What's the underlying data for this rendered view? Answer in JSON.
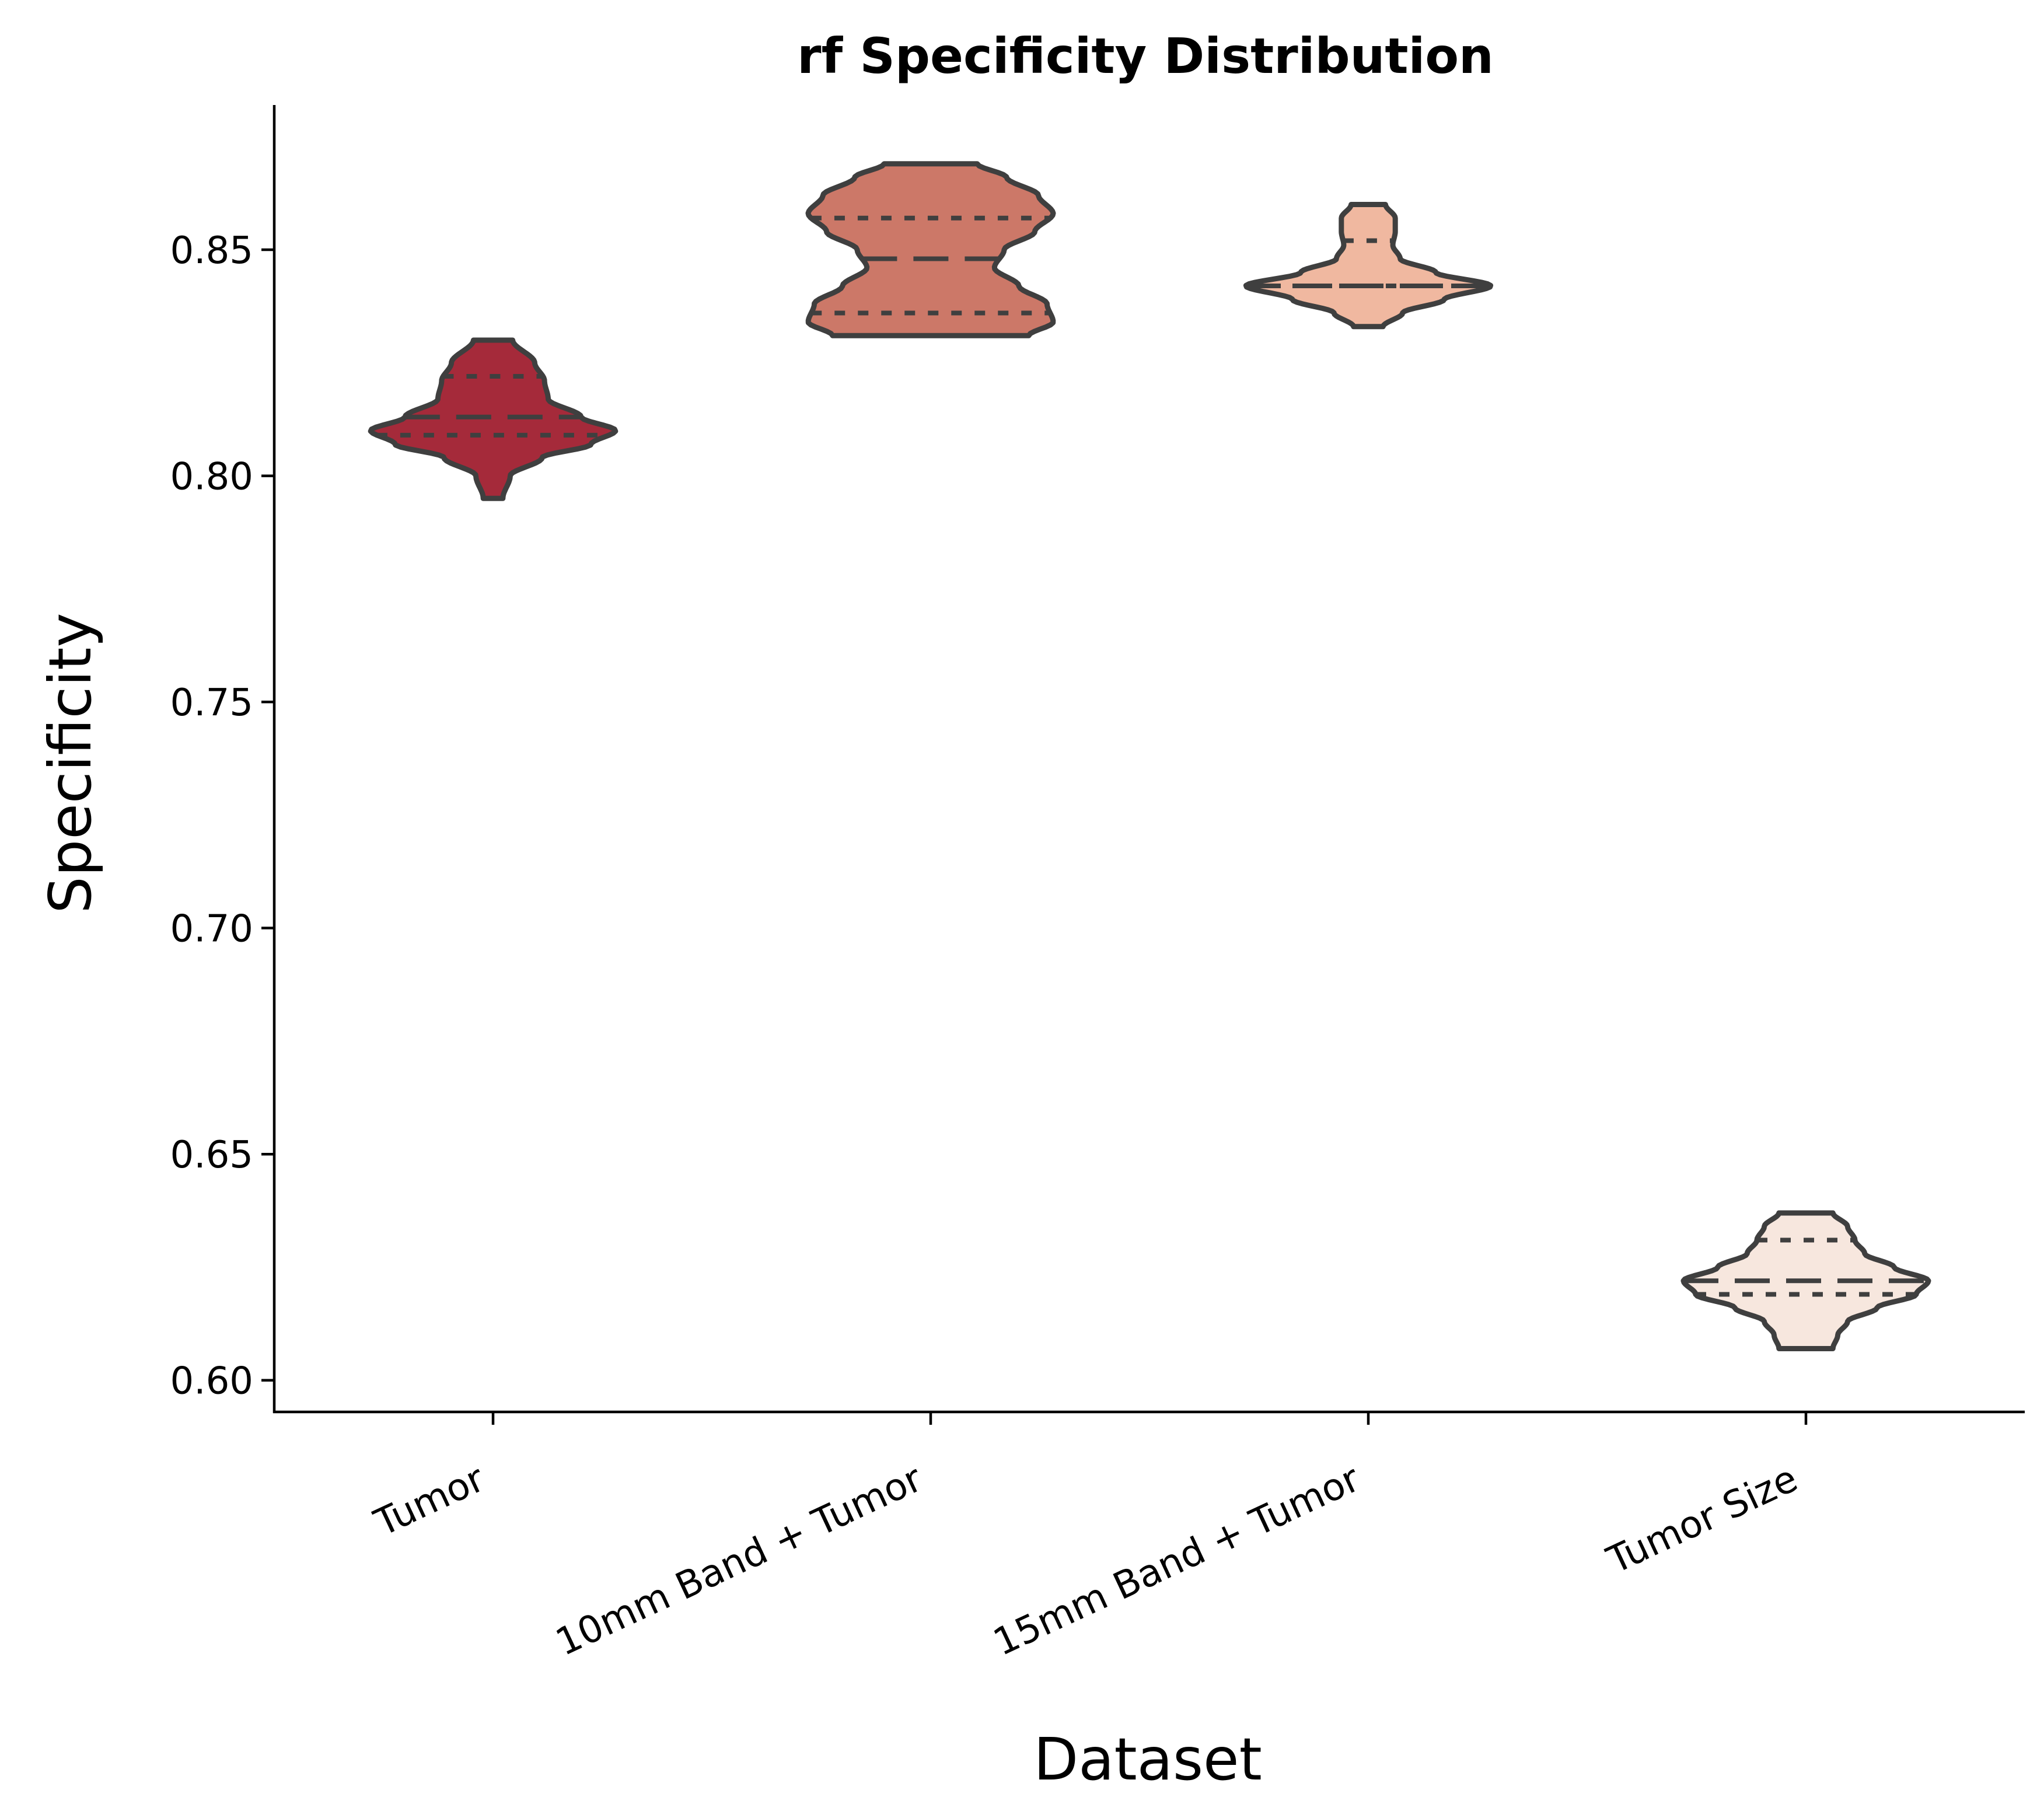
{
  "chart_data": {
    "type": "violin",
    "title": "rf Specificity Distribution",
    "xlabel": "Dataset",
    "ylabel": "Specificity",
    "ylim": [
      0.593,
      0.882
    ],
    "yticks": [
      "0.60",
      "0.65",
      "0.70",
      "0.75",
      "0.80",
      "0.85"
    ],
    "ytick_values": [
      0.6,
      0.65,
      0.7,
      0.75,
      0.8,
      0.85
    ],
    "grid": false,
    "inner": "quartile",
    "categories": [
      "Tumor",
      "10mm Band + Tumor",
      "15mm Band + Tumor",
      "Tumor Size"
    ],
    "series": [
      {
        "category": "Tumor",
        "color": "#a52a3a",
        "min": 0.795,
        "max": 0.83,
        "q1": 0.809,
        "median": 0.813,
        "q3": 0.822,
        "density": [
          [
            0.795,
            0.08
          ],
          [
            0.8,
            0.14
          ],
          [
            0.804,
            0.4
          ],
          [
            0.807,
            0.8
          ],
          [
            0.81,
            1.0
          ],
          [
            0.813,
            0.72
          ],
          [
            0.817,
            0.45
          ],
          [
            0.821,
            0.42
          ],
          [
            0.825,
            0.34
          ],
          [
            0.83,
            0.16
          ]
        ]
      },
      {
        "category": "10mm Band + Tumor",
        "color": "#cc7868",
        "min": 0.831,
        "max": 0.869,
        "q1": 0.836,
        "median": 0.848,
        "q3": 0.857,
        "density": [
          [
            0.831,
            0.8
          ],
          [
            0.834,
            1.0
          ],
          [
            0.838,
            0.95
          ],
          [
            0.842,
            0.72
          ],
          [
            0.846,
            0.52
          ],
          [
            0.85,
            0.6
          ],
          [
            0.854,
            0.85
          ],
          [
            0.858,
            1.0
          ],
          [
            0.862,
            0.88
          ],
          [
            0.866,
            0.62
          ],
          [
            0.869,
            0.38
          ]
        ]
      },
      {
        "category": "15mm Band + Tumor",
        "color": "#f0b8a0",
        "min": 0.833,
        "max": 0.86,
        "q1": 0.842,
        "median": 0.842,
        "q3": 0.852,
        "density": [
          [
            0.833,
            0.12
          ],
          [
            0.836,
            0.28
          ],
          [
            0.839,
            0.62
          ],
          [
            0.842,
            1.0
          ],
          [
            0.845,
            0.55
          ],
          [
            0.848,
            0.26
          ],
          [
            0.851,
            0.2
          ],
          [
            0.854,
            0.22
          ],
          [
            0.857,
            0.22
          ],
          [
            0.86,
            0.14
          ]
        ]
      },
      {
        "category": "Tumor Size",
        "color": "#f7e7de",
        "min": 0.607,
        "max": 0.637,
        "q1": 0.619,
        "median": 0.622,
        "q3": 0.631,
        "density": [
          [
            0.607,
            0.22
          ],
          [
            0.61,
            0.26
          ],
          [
            0.613,
            0.34
          ],
          [
            0.616,
            0.58
          ],
          [
            0.619,
            0.9
          ],
          [
            0.622,
            1.0
          ],
          [
            0.625,
            0.72
          ],
          [
            0.628,
            0.48
          ],
          [
            0.631,
            0.4
          ],
          [
            0.634,
            0.34
          ],
          [
            0.637,
            0.22
          ]
        ]
      }
    ]
  }
}
